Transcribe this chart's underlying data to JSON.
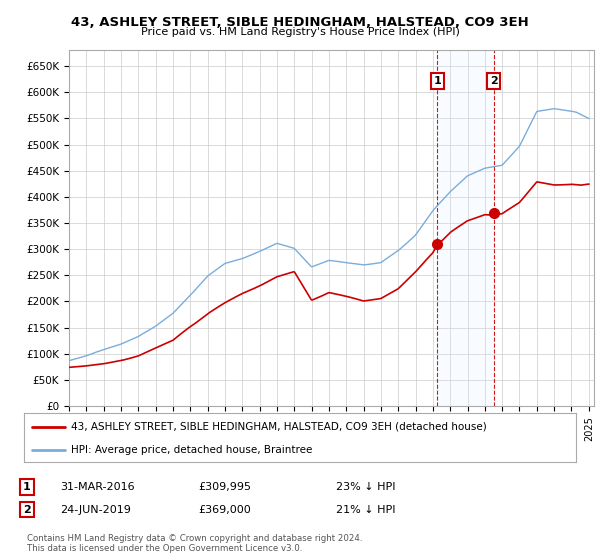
{
  "title": "43, ASHLEY STREET, SIBLE HEDINGHAM, HALSTEAD, CO9 3EH",
  "subtitle": "Price paid vs. HM Land Registry's House Price Index (HPI)",
  "ylim": [
    0,
    680000
  ],
  "yticks": [
    0,
    50000,
    100000,
    150000,
    200000,
    250000,
    300000,
    350000,
    400000,
    450000,
    500000,
    550000,
    600000,
    650000
  ],
  "ytick_labels": [
    "£0",
    "£50K",
    "£100K",
    "£150K",
    "£200K",
    "£250K",
    "£300K",
    "£350K",
    "£400K",
    "£450K",
    "£500K",
    "£550K",
    "£600K",
    "£650K"
  ],
  "background_color": "#ffffff",
  "plot_bg_color": "#ffffff",
  "grid_color": "#cccccc",
  "transaction1_year": 2016.25,
  "transaction1_price": 309995,
  "transaction2_year": 2019.5,
  "transaction2_price": 369000,
  "legend_line1": "43, ASHLEY STREET, SIBLE HEDINGHAM, HALSTEAD, CO9 3EH (detached house)",
  "legend_line2": "HPI: Average price, detached house, Braintree",
  "note1_date": "31-MAR-2016",
  "note1_price": "£309,995",
  "note1_hpi": "23% ↓ HPI",
  "note2_date": "24-JUN-2019",
  "note2_price": "£369,000",
  "note2_hpi": "21% ↓ HPI",
  "footer": "Contains HM Land Registry data © Crown copyright and database right 2024.\nThis data is licensed under the Open Government Licence v3.0.",
  "hpi_line_color": "#7aaddb",
  "price_line_color": "#cc0000",
  "vline_color": "#cc0000",
  "span_color": "#ddeeff",
  "hpi_base_points_x": [
    1995,
    1996,
    1997,
    1998,
    1999,
    2000,
    2001,
    2002,
    2003,
    2004,
    2005,
    2006,
    2007,
    2008,
    2009,
    2010,
    2011,
    2012,
    2013,
    2014,
    2015,
    2016,
    2017,
    2018,
    2019,
    2020,
    2021,
    2022,
    2023,
    2024,
    2025
  ],
  "hpi_base_points_y": [
    92000,
    100000,
    112000,
    123000,
    138000,
    158000,
    183000,
    218000,
    255000,
    278000,
    287000,
    300000,
    315000,
    305000,
    268000,
    278000,
    272000,
    268000,
    272000,
    295000,
    325000,
    370000,
    405000,
    435000,
    450000,
    455000,
    490000,
    555000,
    560000,
    555000,
    548000
  ],
  "red_base_points_x": [
    1995,
    1996,
    1997,
    1998,
    1999,
    2000,
    2001,
    2002,
    2003,
    2004,
    2005,
    2006,
    2007,
    2008,
    2009,
    2010,
    2011,
    2012,
    2013,
    2014,
    2015,
    2016,
    2016.25,
    2017,
    2018,
    2019,
    2019.5,
    2020,
    2021,
    2022,
    2023,
    2024,
    2025
  ],
  "red_base_points_y": [
    70000,
    73000,
    78000,
    84000,
    93000,
    107000,
    121000,
    148000,
    174000,
    195000,
    213000,
    228000,
    245000,
    255000,
    200000,
    215000,
    208000,
    200000,
    205000,
    225000,
    258000,
    295000,
    309995,
    335000,
    358000,
    370000,
    369000,
    372000,
    395000,
    435000,
    430000,
    430000,
    425000
  ]
}
